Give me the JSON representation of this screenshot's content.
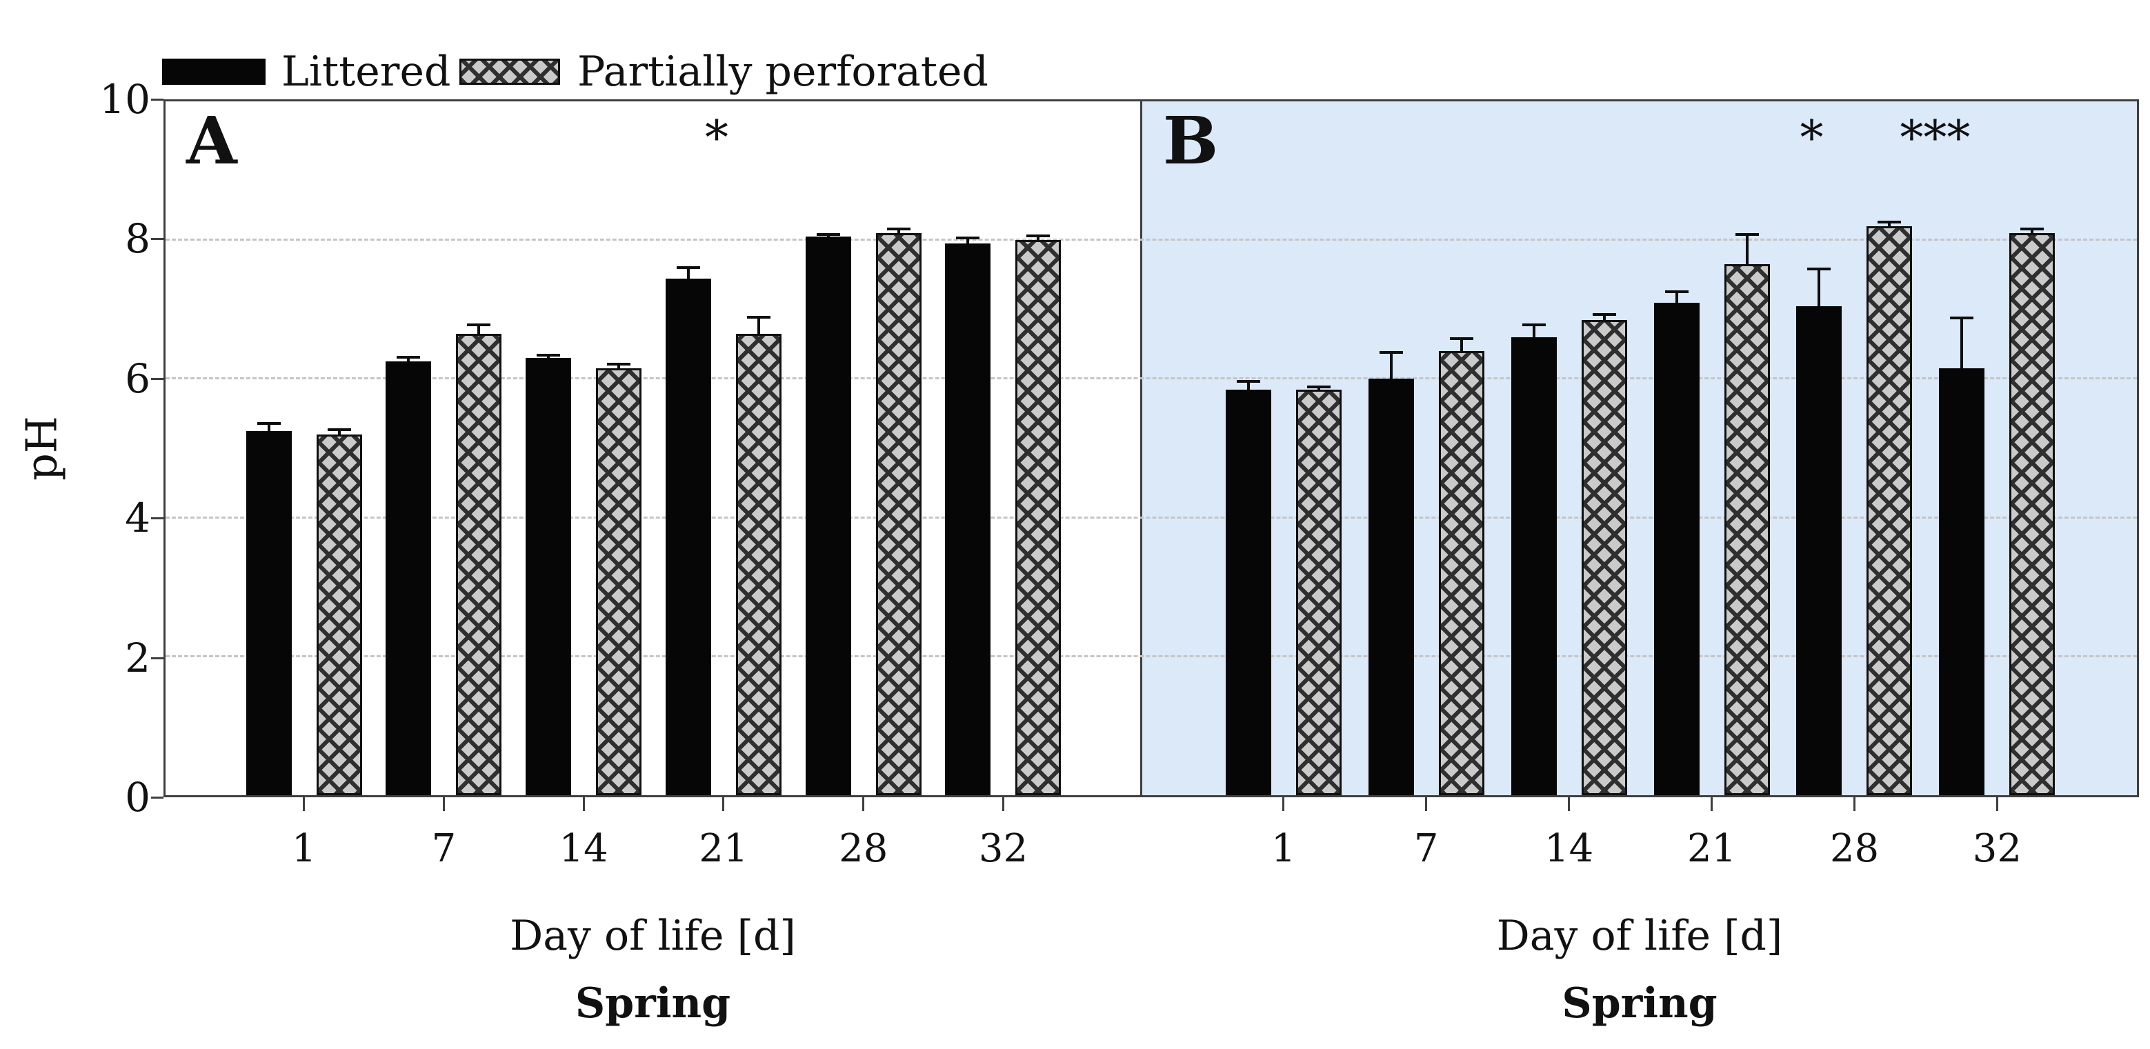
{
  "legend": {
    "items": [
      {
        "label": "Littered",
        "swatch": "solid-black"
      },
      {
        "label": "Partially perforated",
        "swatch": "gray-crosshatch"
      }
    ]
  },
  "y_axis": {
    "label": "pH",
    "ticks": [
      "0",
      "2",
      "4",
      "6",
      "8",
      "10"
    ],
    "min": 0,
    "max": 10
  },
  "colors": {
    "panel_b_background": "#dbe9f9",
    "bar_solid": "#060606",
    "hatch_background": "#cacaca",
    "hatch_line": "#2f2f2f",
    "gridline": "#c5c5c5",
    "axis": "#3f3f3f",
    "text": "#111111"
  },
  "chart_data": [
    {
      "type": "bar",
      "panel_letter": "A",
      "background": "white",
      "categories": [
        "1",
        "7",
        "14",
        "21",
        "28",
        "32"
      ],
      "series": [
        {
          "name": "Littered",
          "values": [
            5.25,
            6.25,
            6.3,
            7.45,
            8.05,
            7.95
          ],
          "errors": [
            0.13,
            0.08,
            0.06,
            0.17,
            0.05,
            0.1
          ]
        },
        {
          "name": "Partially perforated",
          "values": [
            5.2,
            6.65,
            6.15,
            6.65,
            8.1,
            8.0
          ],
          "errors": [
            0.09,
            0.15,
            0.08,
            0.26,
            0.08,
            0.08
          ]
        }
      ],
      "annotations": [
        {
          "x_index": 3,
          "text": "*"
        }
      ],
      "xlabel": "Day of life [d]",
      "sublabel": "Spring",
      "ylabel": "pH",
      "ylim": [
        0,
        10
      ],
      "grid": "dashed horizontal at 2,4,6,8",
      "legend_position": "top-left above plot"
    },
    {
      "type": "bar",
      "panel_letter": "B",
      "background": "light-blue",
      "categories": [
        "1",
        "7",
        "14",
        "21",
        "28",
        "32"
      ],
      "series": [
        {
          "name": "Littered",
          "values": [
            5.85,
            6.0,
            6.6,
            7.1,
            7.05,
            6.15
          ],
          "errors": [
            0.13,
            0.4,
            0.2,
            0.18,
            0.55,
            0.75
          ]
        },
        {
          "name": "Partially perforated",
          "values": [
            5.85,
            6.4,
            6.85,
            7.65,
            8.2,
            8.1
          ],
          "errors": [
            0.05,
            0.2,
            0.1,
            0.45,
            0.08,
            0.08
          ]
        }
      ],
      "annotations": [
        {
          "x_index": 4,
          "text": "*"
        },
        {
          "x_index": 5,
          "text": "***"
        }
      ],
      "xlabel": "Day of life [d]",
      "sublabel": "Spring",
      "ylabel": "pH",
      "ylim": [
        0,
        10
      ],
      "grid": "dashed horizontal at 2,4,6,8",
      "legend_position": "top-left above plot"
    }
  ]
}
